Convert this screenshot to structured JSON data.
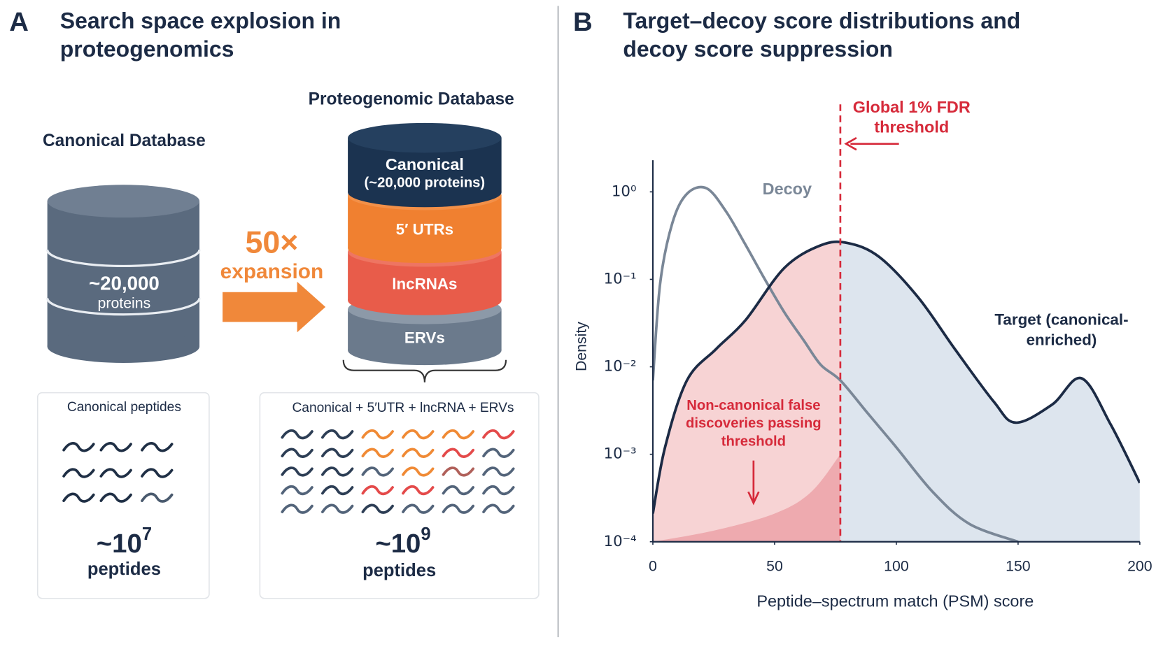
{
  "panel_a": {
    "label": "A",
    "title": "Search space explosion in proteogenomics",
    "canonical_db": {
      "title": "Canonical Database",
      "count": "~20,000",
      "unit": "proteins"
    },
    "expansion": {
      "factor": "50×",
      "label": "expansion"
    },
    "proteogenomic_db": {
      "title": "Proteogenomic Database",
      "layers": [
        {
          "label": "Canonical",
          "sublabel": "(~20,000 proteins)"
        },
        {
          "label": "5′ UTRs"
        },
        {
          "label": "lncRNAs"
        },
        {
          "label": "ERVs"
        }
      ]
    },
    "peptide_boxes": [
      {
        "title": "Canonical peptides",
        "count": "~10",
        "exponent": "7",
        "unit": "peptides"
      },
      {
        "title": "Canonical + 5′UTR + lncRNA + ERVs",
        "count": "~10",
        "exponent": "9",
        "unit": "peptides"
      }
    ]
  },
  "chart_data": {
    "type": "line",
    "panel_label": "B",
    "title": "Target–decoy score distributions and decoy score suppression",
    "xlabel": "Peptide–spectrum match (PSM) score",
    "ylabel": "Density",
    "xlim": [
      0,
      200
    ],
    "xticks": [
      0,
      50,
      100,
      150,
      200
    ],
    "ylim": [
      0.0001,
      2.3
    ],
    "yscale": "log",
    "yticks": [
      {
        "value": 0.0001,
        "label": "10⁻⁴"
      },
      {
        "value": 0.001,
        "label": "10⁻³"
      },
      {
        "value": 0.01,
        "label": "10⁻²"
      },
      {
        "value": 0.1,
        "label": "10⁻¹"
      },
      {
        "value": 1,
        "label": "10⁰"
      }
    ],
    "threshold": {
      "x": 77,
      "label": "Global 1% FDR threshold",
      "color": "#d62a3a"
    },
    "series": [
      {
        "name": "Decoy",
        "color": "#7a8797",
        "x": [
          0,
          3,
          8,
          14,
          22,
          30,
          38,
          46,
          54,
          62,
          69,
          77,
          88,
          100,
          115,
          130,
          150
        ],
        "values": [
          0.007,
          0.09,
          0.44,
          0.95,
          1.1,
          0.6,
          0.25,
          0.1,
          0.042,
          0.02,
          0.0105,
          0.007,
          0.003,
          0.0012,
          0.00037,
          0.00016,
          0.0001
        ]
      },
      {
        "name": "Target (canonical-enriched)",
        "color": "#1c2b45",
        "fill_below_threshold": "#f7d3d4",
        "fill_above_threshold": "#dde5ee",
        "x": [
          0,
          5,
          14,
          26,
          38,
          54,
          69,
          80,
          93,
          109,
          124,
          140,
          149,
          164,
          176,
          188,
          200
        ],
        "values": [
          0.00021,
          0.0012,
          0.007,
          0.016,
          0.034,
          0.135,
          0.245,
          0.26,
          0.18,
          0.062,
          0.016,
          0.004,
          0.0023,
          0.0037,
          0.0074,
          0.0022,
          0.00047
        ]
      },
      {
        "name": "Non-canonical false discoveries passing threshold",
        "color": "#eba0a5",
        "style": "area",
        "x": [
          0,
          25,
          50,
          65,
          77
        ],
        "values": [
          0.0001,
          0.000134,
          0.00021,
          0.00037,
          0.001
        ]
      }
    ]
  }
}
